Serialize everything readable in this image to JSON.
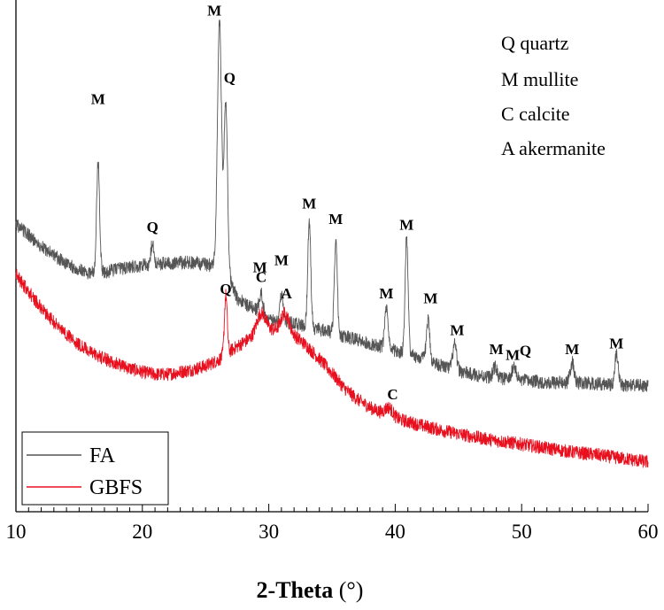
{
  "chart_data": {
    "type": "line",
    "xlabel": "2-Theta (°)",
    "ylabel": "",
    "xlim": [
      10,
      60
    ],
    "xticks": [
      10,
      20,
      30,
      40,
      50,
      60
    ],
    "colors": {
      "FA": "#555555",
      "GBFS": "#e8101e"
    },
    "series": [
      {
        "name": "FA",
        "baseline": [
          [
            10,
            1215
          ],
          [
            12,
            1120
          ],
          [
            14,
            1045
          ],
          [
            15.5,
            1010
          ],
          [
            17,
            1010
          ],
          [
            18,
            1025
          ],
          [
            20,
            1040
          ],
          [
            22,
            1050
          ],
          [
            24,
            1052
          ],
          [
            25.5,
            1040
          ],
          [
            26.5,
            1030
          ],
          [
            27.5,
            900
          ],
          [
            29,
            850
          ],
          [
            30,
            810
          ],
          [
            32,
            795
          ],
          [
            34,
            770
          ],
          [
            36,
            740
          ],
          [
            38,
            710
          ],
          [
            40,
            680
          ],
          [
            42,
            650
          ],
          [
            44,
            610
          ],
          [
            46,
            580
          ],
          [
            48,
            565
          ],
          [
            50,
            555
          ],
          [
            52,
            545
          ],
          [
            54,
            545
          ],
          [
            56,
            540
          ],
          [
            58,
            535
          ],
          [
            60,
            530
          ]
        ],
        "peaks": [
          {
            "x": 16.5,
            "height": 465,
            "width": 0.12
          },
          {
            "x": 20.8,
            "height": 90,
            "width": 0.12
          },
          {
            "x": 26.1,
            "height": 1035,
            "width": 0.16
          },
          {
            "x": 26.6,
            "height": 700,
            "width": 0.14
          },
          {
            "x": 29.4,
            "height": 90,
            "width": 0.15
          },
          {
            "x": 31.0,
            "height": 115,
            "width": 0.15
          },
          {
            "x": 33.2,
            "height": 440,
            "width": 0.12
          },
          {
            "x": 35.3,
            "height": 390,
            "width": 0.12
          },
          {
            "x": 39.3,
            "height": 165,
            "width": 0.13
          },
          {
            "x": 40.9,
            "height": 500,
            "width": 0.12
          },
          {
            "x": 42.6,
            "height": 170,
            "width": 0.13
          },
          {
            "x": 44.7,
            "height": 105,
            "width": 0.15
          },
          {
            "x": 47.9,
            "height": 45,
            "width": 0.15
          },
          {
            "x": 49.4,
            "height": 60,
            "width": 0.15
          },
          {
            "x": 54.0,
            "height": 85,
            "width": 0.15
          },
          {
            "x": 57.5,
            "height": 125,
            "width": 0.13
          }
        ],
        "noise": 28
      },
      {
        "name": "GBFS",
        "baseline": [
          [
            10,
            1000
          ],
          [
            11,
            930
          ],
          [
            12,
            860
          ],
          [
            13,
            800
          ],
          [
            14,
            750
          ],
          [
            15,
            705
          ],
          [
            16,
            670
          ],
          [
            17,
            645
          ],
          [
            18,
            625
          ],
          [
            19,
            605
          ],
          [
            20,
            590
          ],
          [
            21,
            580
          ],
          [
            22,
            580
          ],
          [
            23,
            590
          ],
          [
            24,
            600
          ],
          [
            25,
            615
          ],
          [
            26,
            640
          ],
          [
            27,
            680
          ],
          [
            28,
            715
          ],
          [
            29,
            745
          ],
          [
            30,
            765
          ],
          [
            31,
            770
          ],
          [
            32,
            745
          ],
          [
            33,
            700
          ],
          [
            34,
            645
          ],
          [
            35,
            585
          ],
          [
            36,
            520
          ],
          [
            37,
            475
          ],
          [
            38,
            440
          ],
          [
            39,
            415
          ],
          [
            40,
            395
          ],
          [
            42,
            365
          ],
          [
            44,
            340
          ],
          [
            46,
            318
          ],
          [
            48,
            300
          ],
          [
            50,
            285
          ],
          [
            52,
            268
          ],
          [
            54,
            252
          ],
          [
            56,
            240
          ],
          [
            58,
            225
          ],
          [
            60,
            210
          ]
        ],
        "peaks": [
          {
            "x": 26.6,
            "height": 250,
            "width": 0.11
          },
          {
            "x": 29.4,
            "height": 85,
            "width": 0.35
          },
          {
            "x": 31.3,
            "height": 75,
            "width": 0.3
          },
          {
            "x": 39.5,
            "height": 35,
            "width": 0.3
          }
        ],
        "noise": 28
      }
    ],
    "annotations": [
      {
        "label": "M",
        "x": 16.5,
        "y": 1720,
        "series": "FA"
      },
      {
        "label": "Q",
        "x": 20.8,
        "y": 1180,
        "series": "FA"
      },
      {
        "label": "M",
        "x": 25.7,
        "y": 2095,
        "series": "FA"
      },
      {
        "label": "Q",
        "x": 26.9,
        "y": 1810,
        "series": "FA"
      },
      {
        "label": "M",
        "x": 29.3,
        "y": 1010,
        "series": "FA"
      },
      {
        "label": "M",
        "x": 31.0,
        "y": 1040,
        "series": "FA"
      },
      {
        "label": "M",
        "x": 33.2,
        "y": 1280,
        "series": "FA"
      },
      {
        "label": "M",
        "x": 35.3,
        "y": 1215,
        "series": "FA"
      },
      {
        "label": "M",
        "x": 39.3,
        "y": 900,
        "series": "FA"
      },
      {
        "label": "M",
        "x": 40.9,
        "y": 1190,
        "series": "FA"
      },
      {
        "label": "M",
        "x": 42.8,
        "y": 880,
        "series": "FA"
      },
      {
        "label": "M",
        "x": 44.9,
        "y": 745,
        "series": "FA"
      },
      {
        "label": "M",
        "x": 48.0,
        "y": 665,
        "series": "FA"
      },
      {
        "label": "M",
        "x": 49.3,
        "y": 640,
        "series": "FA"
      },
      {
        "label": "Q",
        "x": 50.3,
        "y": 660,
        "series": "FA"
      },
      {
        "label": "M",
        "x": 54.0,
        "y": 665,
        "series": "FA"
      },
      {
        "label": "M",
        "x": 57.5,
        "y": 690,
        "series": "FA"
      },
      {
        "label": "Q",
        "x": 26.6,
        "y": 920,
        "series": "GBFS"
      },
      {
        "label": "C",
        "x": 29.4,
        "y": 970,
        "series": "GBFS"
      },
      {
        "label": "A",
        "x": 31.4,
        "y": 900,
        "series": "GBFS"
      },
      {
        "label": "C",
        "x": 39.8,
        "y": 475,
        "series": "GBFS"
      }
    ],
    "phase_key": [
      "Q quartz",
      "M mullite",
      "C calcite",
      "A akermanite"
    ],
    "legend": {
      "position": "bottom-left",
      "entries": [
        "FA",
        "GBFS"
      ]
    }
  }
}
